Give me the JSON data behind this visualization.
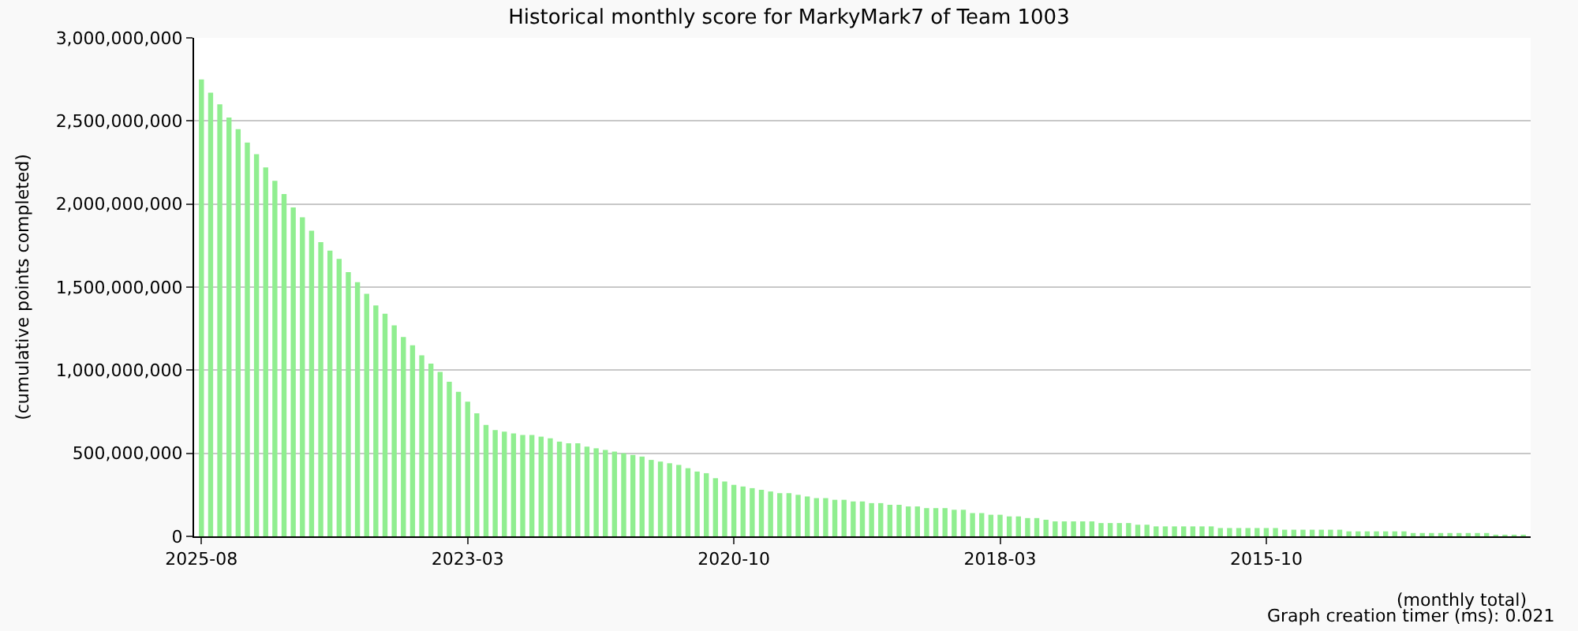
{
  "chart_data": {
    "type": "bar",
    "title": "Historical monthly score for MarkyMark7 of Team 1003",
    "xlabel": "(monthly total)",
    "ylabel": "(cumulative points completed)",
    "annotations": [
      "Graph creation timer (ms): 0.021"
    ],
    "categories": [
      "2025-08",
      null,
      null,
      null,
      null,
      null,
      null,
      null,
      null,
      null,
      null,
      null,
      null,
      null,
      null,
      null,
      null,
      null,
      null,
      null,
      null,
      null,
      null,
      null,
      null,
      null,
      null,
      null,
      null,
      "2023-03",
      null,
      null,
      null,
      null,
      null,
      null,
      null,
      null,
      null,
      null,
      null,
      null,
      null,
      null,
      null,
      null,
      null,
      null,
      null,
      null,
      null,
      null,
      null,
      null,
      null,
      null,
      null,
      null,
      "2020-10",
      null,
      null,
      null,
      null,
      null,
      null,
      null,
      null,
      null,
      null,
      null,
      null,
      null,
      null,
      null,
      null,
      null,
      null,
      null,
      null,
      null,
      null,
      null,
      null,
      null,
      null,
      null,
      null,
      "2018-03",
      null,
      null,
      null,
      null,
      null,
      null,
      null,
      null,
      null,
      null,
      null,
      null,
      null,
      null,
      null,
      null,
      null,
      null,
      null,
      null,
      null,
      null,
      null,
      null,
      null,
      null,
      null,
      null,
      "2015-10",
      null,
      null,
      null,
      null,
      null,
      null,
      null,
      null,
      null,
      null,
      null,
      null,
      null,
      null,
      null,
      null,
      null,
      null,
      null,
      null,
      null,
      null,
      null,
      null,
      null,
      null,
      null,
      null
    ],
    "values": [
      2750000000.0,
      2670000000.0,
      2600000000.0,
      2520000000.0,
      2450000000.0,
      2370000000.0,
      2300000000.0,
      2220000000.0,
      2140000000.0,
      2060000000.0,
      1980000000.0,
      1920000000.0,
      1840000000.0,
      1770000000.0,
      1720000000.0,
      1670000000.0,
      1590000000.0,
      1530000000.0,
      1460000000.0,
      1390000000.0,
      1340000000.0,
      1270000000.0,
      1200000000.0,
      1150000000.0,
      1090000000.0,
      1040000000.0,
      990000000.0,
      930000000.0,
      870000000.0,
      810000000.0,
      740000000.0,
      670000000.0,
      640000000.0,
      630000000.0,
      620000000.0,
      610000000.0,
      610000000.0,
      600000000.0,
      590000000.0,
      570000000.0,
      560000000.0,
      560000000.0,
      540000000.0,
      530000000.0,
      520000000.0,
      510000000.0,
      500000000.0,
      490000000.0,
      480000000.0,
      460000000.0,
      450000000.0,
      440000000.0,
      430000000.0,
      410000000.0,
      390000000.0,
      380000000.0,
      350000000.0,
      330000000.0,
      310000000.0,
      300000000.0,
      290000000.0,
      280000000.0,
      270000000.0,
      260000000.0,
      260000000.0,
      250000000.0,
      240000000.0,
      230000000.0,
      230000000.0,
      220000000.0,
      220000000.0,
      210000000.0,
      210000000.0,
      200000000.0,
      200000000.0,
      190000000.0,
      190000000.0,
      180000000.0,
      180000000.0,
      170000000.0,
      170000000.0,
      170000000.0,
      160000000.0,
      160000000.0,
      140000000.0,
      140000000.0,
      130000000.0,
      130000000.0,
      120000000.0,
      120000000.0,
      110000000.0,
      110000000.0,
      100000000.0,
      90000000.0,
      90000000.0,
      90000000.0,
      90000000.0,
      90000000.0,
      80000000.0,
      80000000.0,
      80000000.0,
      80000000.0,
      70000000.0,
      70000000.0,
      60000000.0,
      60000000.0,
      60000000.0,
      60000000.0,
      60000000.0,
      60000000.0,
      60000000.0,
      50000000.0,
      50000000.0,
      50000000.0,
      50000000.0,
      50000000.0,
      50000000.0,
      50000000.0,
      40000000.0,
      40000000.0,
      40000000.0,
      40000000.0,
      40000000.0,
      40000000.0,
      40000000.0,
      30000000.0,
      30000000.0,
      30000000.0,
      30000000.0,
      30000000.0,
      30000000.0,
      30000000.0,
      20000000.0,
      20000000.0,
      20000000.0,
      20000000.0,
      20000000.0,
      20000000.0,
      20000000.0,
      20000000.0,
      20000000.0,
      10000000.0,
      10000000.0,
      10000000.0,
      10000000.0
    ],
    "color": "#90ee90",
    "ylim": [
      0,
      3000000000
    ],
    "yticks": [
      {
        "value": 0,
        "label": "0"
      },
      {
        "value": 500000000,
        "label": "500,000,000"
      },
      {
        "value": 1000000000,
        "label": "1,000,000,000"
      },
      {
        "value": 1500000000,
        "label": "1,500,000,000"
      },
      {
        "value": 2000000000,
        "label": "2,000,000,000"
      },
      {
        "value": 2500000000,
        "label": "2,500,000,000"
      },
      {
        "value": 3000000000,
        "label": "3,000,000,000"
      }
    ],
    "grid": "y"
  }
}
